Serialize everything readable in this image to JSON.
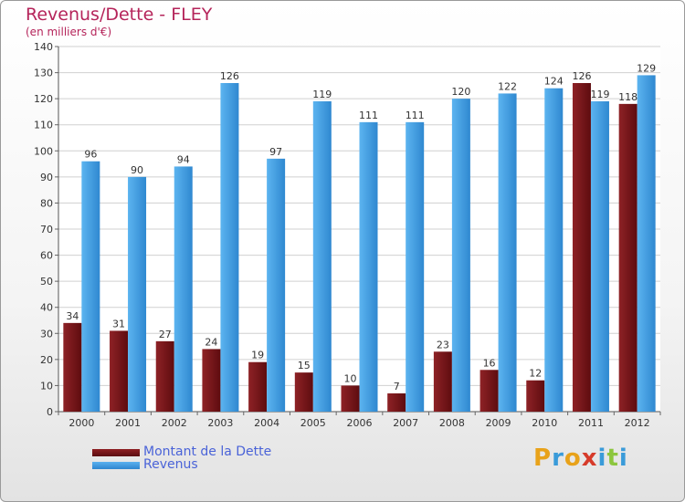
{
  "chart_data": {
    "type": "bar",
    "title": "Revenus/Dette - FLEY",
    "subtitle": "(en milliers d'€)",
    "categories": [
      "2000",
      "2001",
      "2002",
      "2003",
      "2004",
      "2005",
      "2006",
      "2007",
      "2008",
      "2009",
      "2010",
      "2011",
      "2012"
    ],
    "series": [
      {
        "name": "Montant de la Dette",
        "color": "#7a1518",
        "values": [
          34,
          31,
          27,
          24,
          19,
          15,
          10,
          7,
          23,
          16,
          12,
          126,
          118
        ]
      },
      {
        "name": "Revenus",
        "color": "#4aa3e8",
        "values": [
          96,
          90,
          94,
          126,
          97,
          119,
          111,
          111,
          120,
          122,
          124,
          119,
          129
        ]
      }
    ],
    "ylim": [
      0,
      140
    ],
    "yticks": [
      0,
      10,
      20,
      30,
      40,
      50,
      60,
      70,
      80,
      90,
      100,
      110,
      120,
      130,
      140
    ],
    "grid": true,
    "legend_position": "bottom-left"
  },
  "logo": {
    "text": "Proxiti",
    "letters": [
      "P",
      "r",
      "o",
      "x",
      "i",
      "t",
      "i"
    ],
    "colors": [
      "#e8a21a",
      "#3a9bd9",
      "#e8a21a",
      "#d63b2a",
      "#3a9bd9",
      "#8cc63e",
      "#3a9bd9"
    ]
  }
}
